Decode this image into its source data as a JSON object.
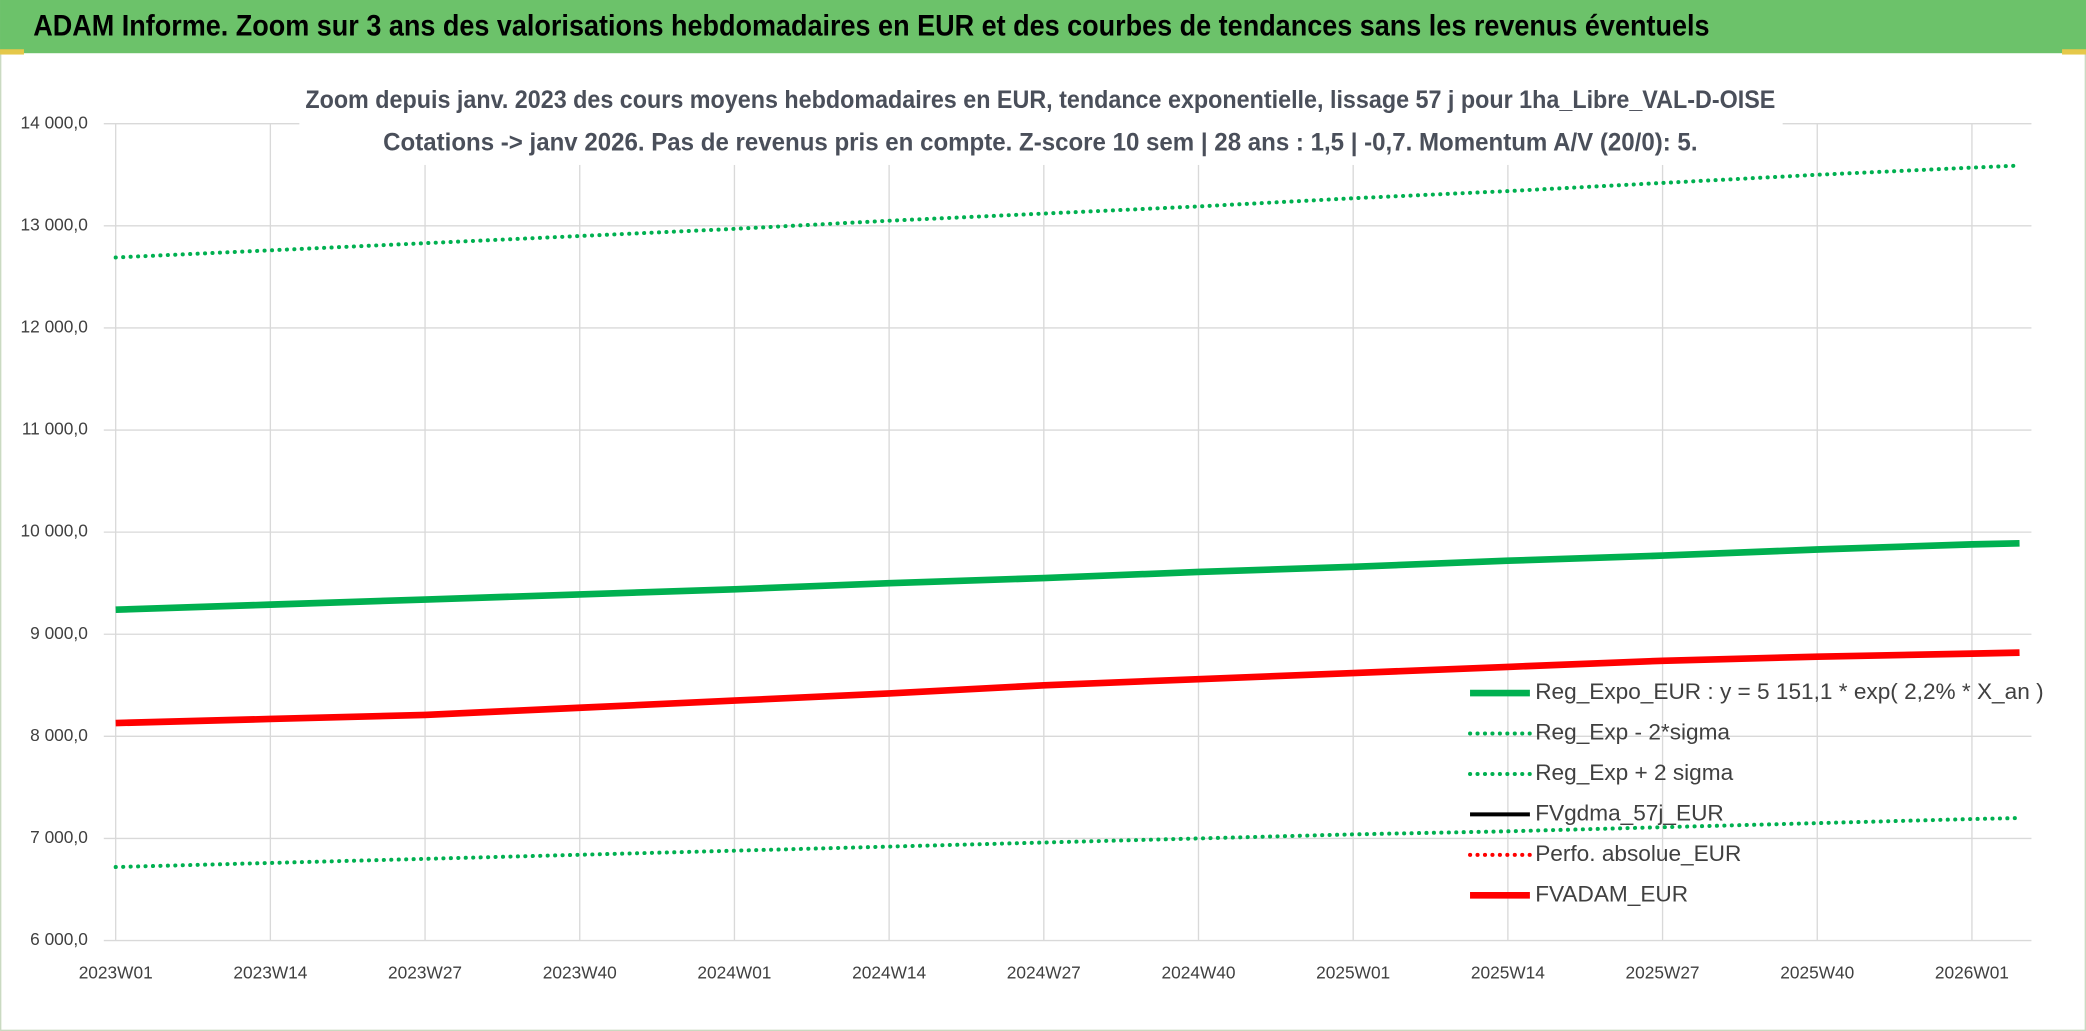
{
  "chart_data": {
    "type": "line",
    "header": "ADAM Informe. Zoom sur 3 ans des valorisations hebdomadaires en EUR et des courbes de tendances sans les revenus éventuels",
    "title": "Zoom depuis janv. 2023 des cours moyens hebdomadaires en EUR, tendance exponentielle, lissage 57 j pour 1ha_Libre_VAL-D-OISE",
    "subtitle": "Cotations -> janv 2026. Pas de revenus pris en compte. Z-score 10 sem | 28 ans : 1,5 | -0,7. Momentum A/V (20/0): 5.",
    "x": [
      0,
      13,
      26,
      39,
      52,
      65,
      78,
      91,
      104,
      117,
      130,
      143,
      156,
      160
    ],
    "xlim": [
      -1,
      161
    ],
    "xticks": [
      {
        "value": 0,
        "label": "2023W01"
      },
      {
        "value": 13,
        "label": "2023W14"
      },
      {
        "value": 26,
        "label": "2023W27"
      },
      {
        "value": 39,
        "label": "2023W40"
      },
      {
        "value": 52,
        "label": "2024W01"
      },
      {
        "value": 65,
        "label": "2024W14"
      },
      {
        "value": 78,
        "label": "2024W27"
      },
      {
        "value": 91,
        "label": "2024W40"
      },
      {
        "value": 104,
        "label": "2025W01"
      },
      {
        "value": 117,
        "label": "2025W14"
      },
      {
        "value": 130,
        "label": "2025W27"
      },
      {
        "value": 143,
        "label": "2025W40"
      },
      {
        "value": 156,
        "label": "2026W01"
      }
    ],
    "ylim": [
      6000,
      14000
    ],
    "yticks": [
      {
        "value": 6000,
        "label": "6 000,0"
      },
      {
        "value": 7000,
        "label": "7 000,0"
      },
      {
        "value": 8000,
        "label": "8 000,0"
      },
      {
        "value": 9000,
        "label": "9 000,0"
      },
      {
        "value": 10000,
        "label": "10 000,0"
      },
      {
        "value": 11000,
        "label": "11 000,0"
      },
      {
        "value": 12000,
        "label": "12 000,0"
      },
      {
        "value": 13000,
        "label": "13 000,0"
      },
      {
        "value": 14000,
        "label": "14 000,0"
      }
    ],
    "grid": true,
    "legend": "right",
    "series": [
      {
        "name": "Reg_Expo_EUR : y = 5 151,1 * exp( 2,2% *  X_an )",
        "color": "#00b050",
        "style": "solid",
        "values": [
          9240,
          9290,
          9340,
          9390,
          9440,
          9500,
          9550,
          9610,
          9660,
          9720,
          9770,
          9830,
          9880,
          9890
        ]
      },
      {
        "name": "Reg_Exp - 2*sigma",
        "color": "#00b050",
        "style": "dotted",
        "values": [
          6720,
          6760,
          6800,
          6840,
          6880,
          6920,
          6960,
          7000,
          7040,
          7070,
          7110,
          7150,
          7190,
          7200
        ]
      },
      {
        "name": "Reg_Exp + 2 sigma",
        "color": "#00b050",
        "style": "dotted",
        "values": [
          12690,
          12760,
          12830,
          12900,
          12970,
          13050,
          13120,
          13190,
          13270,
          13340,
          13420,
          13500,
          13570,
          13590
        ]
      },
      {
        "name": "FVgdma_57j_EUR",
        "color": "#000000",
        "style": "solid",
        "values": [
          null,
          null,
          null,
          null,
          null,
          null,
          null,
          null,
          null,
          null,
          null,
          null,
          null,
          null
        ]
      },
      {
        "name": "Perfo. absolue_EUR",
        "color": "#ff0000",
        "style": "dotted",
        "values": [
          null,
          null,
          null,
          null,
          null,
          null,
          null,
          null,
          null,
          null,
          null,
          null,
          null,
          null
        ]
      },
      {
        "name": "FVADAM_EUR",
        "color": "#ff0000",
        "style": "solid",
        "values": [
          8130,
          8170,
          8210,
          8280,
          8350,
          8420,
          8500,
          8560,
          8620,
          8680,
          8740,
          8780,
          8810,
          8820
        ]
      }
    ]
  }
}
